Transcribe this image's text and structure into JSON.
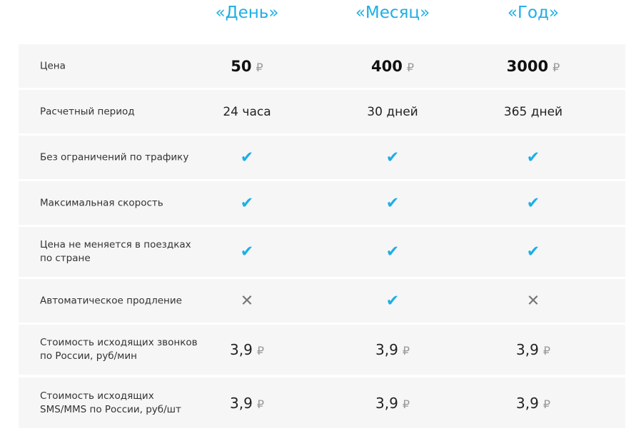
{
  "plans": [
    "«День»",
    "«Месяц»",
    "«Год»"
  ],
  "currency": "₽",
  "accent_color": "#1eaee6",
  "rows": [
    {
      "label": "Цена",
      "values": [
        "50",
        "400",
        "3000"
      ]
    },
    {
      "label": "Расчетный период",
      "values": [
        "24 часа",
        "30 дней",
        "365 дней"
      ]
    },
    {
      "label": "Без ограничений по трафику",
      "values": [
        "check-icon",
        "check-icon",
        "check-icon"
      ]
    },
    {
      "label": "Максимальная скорость",
      "values": [
        "check-icon",
        "check-icon",
        "check-icon"
      ]
    },
    {
      "label": "Цена не меняется в поездках по стране",
      "values": [
        "check-icon",
        "check-icon",
        "check-icon"
      ]
    },
    {
      "label": "Автоматическое продление",
      "values": [
        "cross-icon",
        "check-icon",
        "cross-icon"
      ]
    },
    {
      "label": "Стоимость исходящих звонков по России, руб/мин",
      "values": [
        "3,9",
        "3,9",
        "3,9"
      ]
    },
    {
      "label": "Стоимость исходящих SMS/MMS по России, руб/шт",
      "values": [
        "3,9",
        "3,9",
        "3,9"
      ]
    }
  ]
}
